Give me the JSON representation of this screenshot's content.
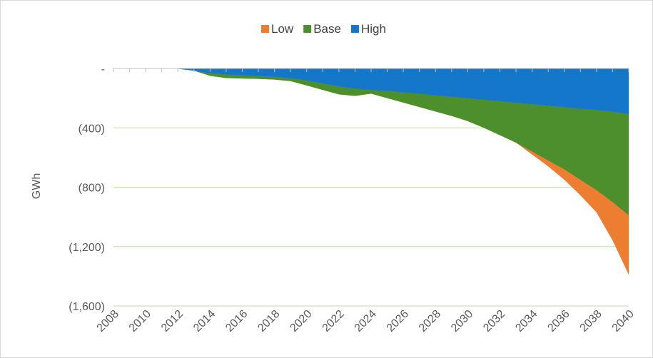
{
  "chart_data": {
    "type": "area",
    "title": "",
    "xlabel": "",
    "ylabel": "GWh",
    "ylim": [
      -1600,
      0
    ],
    "yticks": [
      0,
      -400,
      -800,
      -1200,
      -1600
    ],
    "ytick_labels": [
      "-",
      "(400)",
      "(800)",
      "(1,200)",
      "(1,600)"
    ],
    "xtick_labels": [
      "2008",
      "2010",
      "2012",
      "2014",
      "2016",
      "2018",
      "2020",
      "2022",
      "2024",
      "2026",
      "2028",
      "2030",
      "2032",
      "2034",
      "2036",
      "2038",
      "2040"
    ],
    "x": [
      2008,
      2009,
      2010,
      2011,
      2012,
      2013,
      2014,
      2015,
      2016,
      2017,
      2018,
      2019,
      2020,
      2021,
      2022,
      2023,
      2024,
      2025,
      2026,
      2027,
      2028,
      2029,
      2030,
      2031,
      2032,
      2033,
      2034,
      2035,
      2036,
      2037,
      2038,
      2039,
      2040
    ],
    "series": [
      {
        "name": "Low",
        "color": "#ed7d31",
        "values": [
          0,
          0,
          0,
          0,
          -2,
          -15,
          -50,
          -65,
          -68,
          -70,
          -75,
          -85,
          -115,
          -145,
          -175,
          -185,
          -170,
          -200,
          -230,
          -260,
          -290,
          -320,
          -355,
          -400,
          -450,
          -500,
          -580,
          -660,
          -750,
          -855,
          -970,
          -1160,
          -1390
        ]
      },
      {
        "name": "Base",
        "color": "#4e8f2d",
        "values": [
          0,
          0,
          0,
          0,
          -2,
          -15,
          -50,
          -65,
          -68,
          -70,
          -75,
          -85,
          -115,
          -145,
          -175,
          -185,
          -170,
          -200,
          -230,
          -260,
          -290,
          -320,
          -355,
          -400,
          -450,
          -500,
          -560,
          -620,
          -680,
          -750,
          -820,
          -900,
          -990
        ]
      },
      {
        "name": "High",
        "color": "#1577c9",
        "values": [
          0,
          0,
          0,
          0,
          -2,
          -15,
          -30,
          -40,
          -45,
          -50,
          -55,
          -65,
          -80,
          -100,
          -120,
          -135,
          -145,
          -150,
          -160,
          -170,
          -180,
          -190,
          -200,
          -210,
          -220,
          -230,
          -240,
          -250,
          -260,
          -270,
          -280,
          -290,
          -305
        ]
      }
    ],
    "grid": true,
    "legend": "top-center"
  }
}
